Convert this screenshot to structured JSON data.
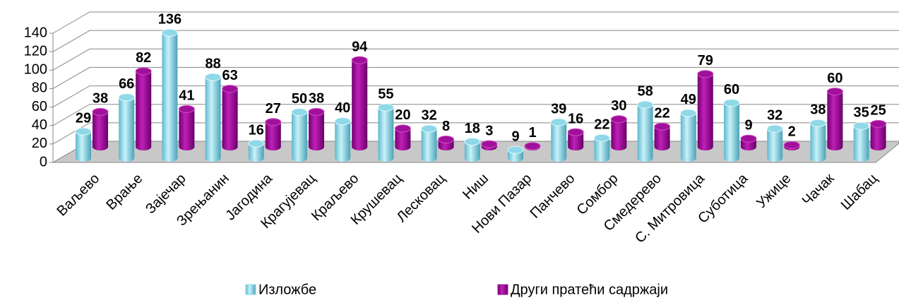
{
  "chart_data": {
    "type": "bar",
    "categories": [
      "Ваљево",
      "Врање",
      "Зајечар",
      "Зрењанин",
      "Јагодина",
      "Крагујевац",
      "Краљево",
      "Крушевац",
      "Лесковац",
      "Ниш",
      "Нови Пазар",
      "Панчево",
      "Сомбор",
      "Смедерево",
      "С. Митровица",
      "Суботица",
      "Ужице",
      "Чачак",
      "Шабац"
    ],
    "series": [
      {
        "name": "Изложбе",
        "color": "#8ed8e8",
        "values": [
          29,
          66,
          136,
          88,
          16,
          50,
          40,
          55,
          32,
          18,
          9,
          39,
          22,
          58,
          49,
          60,
          32,
          38,
          35
        ]
      },
      {
        "name": "Други пратећи садржаји",
        "color": "#a0109a",
        "values": [
          38,
          82,
          41,
          63,
          27,
          38,
          94,
          20,
          8,
          3,
          1,
          16,
          30,
          22,
          79,
          9,
          2,
          60,
          25
        ]
      }
    ],
    "ylim": [
      0,
      140
    ],
    "yticks": [
      0,
      20,
      40,
      60,
      80,
      100,
      120,
      140
    ],
    "grid": true,
    "legend": "bottom"
  }
}
